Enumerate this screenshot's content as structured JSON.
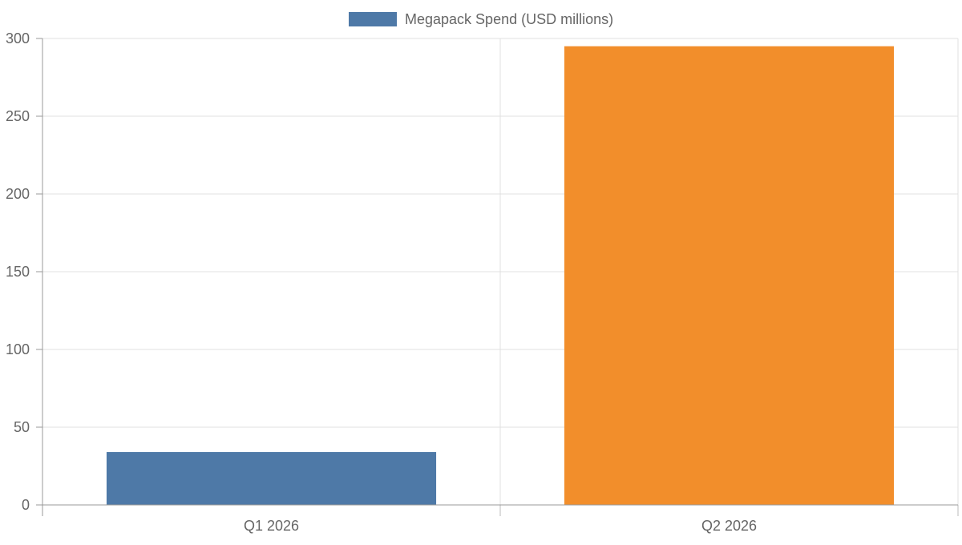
{
  "chart_data": {
    "type": "bar",
    "categories": [
      "Q1 2026",
      "Q2 2026"
    ],
    "series": [
      {
        "name": "Megapack Spend (USD millions)",
        "values": [
          34,
          295
        ]
      }
    ],
    "bar_colors": [
      "#4e79a7",
      "#f28e2b"
    ],
    "legend": {
      "label": "Megapack Spend (USD millions)",
      "color": "#4e79a7",
      "position": "top-center"
    },
    "ylim": [
      0,
      300
    ],
    "yticks": [
      0,
      50,
      100,
      150,
      200,
      250,
      300
    ],
    "grid": true
  }
}
